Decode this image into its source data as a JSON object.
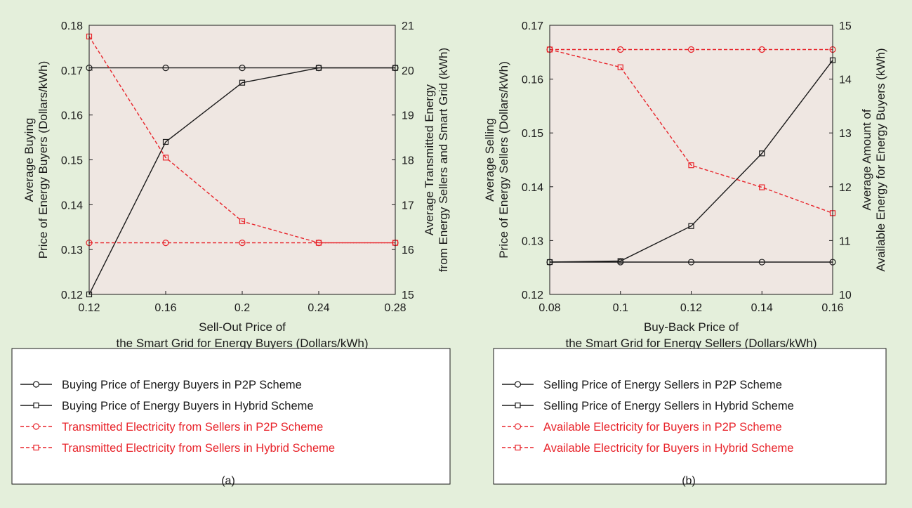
{
  "chart_data": [
    {
      "type": "line",
      "panel_label": "(a)",
      "x": [
        0.12,
        0.16,
        0.2,
        0.24,
        0.28
      ],
      "x_ticks": [
        "0.12",
        "0.16",
        "0.2",
        "0.24",
        "0.28"
      ],
      "xlim": [
        0.12,
        0.28
      ],
      "xlabel_lines": [
        "Sell-Out Price of",
        "the Smart Grid for Energy Buyers (Dollars/kWh)"
      ],
      "ylim": [
        0.12,
        0.18
      ],
      "y_ticks": [
        "0.12",
        "0.13",
        "0.14",
        "0.15",
        "0.16",
        "0.17",
        "0.18"
      ],
      "ylabel_lines": [
        "Average Buying",
        "Price of Energy Buyers (Dollars/kWh)"
      ],
      "y2lim": [
        15,
        21
      ],
      "y2_ticks": [
        "15",
        "16",
        "17",
        "18",
        "19",
        "20",
        "21"
      ],
      "y2label_lines": [
        "Average Transmitted Energy",
        "from Energy Sellers and Smart Grid (kWh)"
      ],
      "series": [
        {
          "name": "Buying Price of Energy Buyers in P2P Scheme",
          "axis": "left",
          "marker": "circle",
          "color": "#1a1a1a",
          "dashed": false,
          "values": [
            0.1705,
            0.1705,
            0.1705,
            0.1705,
            0.1705
          ]
        },
        {
          "name": "Buying Price of Energy Buyers in Hybrid Scheme",
          "axis": "left",
          "marker": "square",
          "color": "#1a1a1a",
          "dashed": false,
          "values": [
            0.12,
            0.154,
            0.1672,
            0.1705,
            0.1705
          ]
        },
        {
          "name": "Transmitted Electricity from Sellers in P2P Scheme",
          "axis": "right",
          "marker": "circle",
          "color": "#e8232a",
          "dashed": true,
          "values": [
            16.15,
            16.15,
            16.15,
            16.15,
            16.15
          ]
        },
        {
          "name": "Transmitted Electricity from Sellers in Hybrid Scheme",
          "axis": "right",
          "marker": "square",
          "color": "#e8232a",
          "dashed": true,
          "values": [
            20.75,
            18.05,
            16.63,
            16.15,
            16.15
          ]
        }
      ]
    },
    {
      "type": "line",
      "panel_label": "(b)",
      "x": [
        0.08,
        0.1,
        0.12,
        0.14,
        0.16
      ],
      "x_ticks": [
        "0.08",
        "0.1",
        "0.12",
        "0.14",
        "0.16"
      ],
      "xlim": [
        0.08,
        0.16
      ],
      "xlabel_lines": [
        "Buy-Back Price of",
        "the Smart Grid for Energy Sellers (Dollars/kWh)"
      ],
      "ylim": [
        0.12,
        0.17
      ],
      "y_ticks": [
        "0.12",
        "0.13",
        "0.14",
        "0.15",
        "0.16",
        "0.17"
      ],
      "ylabel_lines": [
        "Average Selling",
        "Price of Energy Sellers (Dollars/kWh)"
      ],
      "y2lim": [
        10,
        15
      ],
      "y2_ticks": [
        "10",
        "11",
        "12",
        "13",
        "14",
        "15"
      ],
      "y2label_lines": [
        "Average Amount of",
        "Available Energy for Energy Buyers (kWh)"
      ],
      "series": [
        {
          "name": "Selling Price of Energy Sellers in P2P Scheme",
          "axis": "left",
          "marker": "circle",
          "color": "#1a1a1a",
          "dashed": false,
          "values": [
            0.126,
            0.126,
            0.126,
            0.126,
            0.126
          ]
        },
        {
          "name": "Selling Price of Energy Sellers in Hybrid Scheme",
          "axis": "left",
          "marker": "square",
          "color": "#1a1a1a",
          "dashed": false,
          "values": [
            0.126,
            0.1262,
            0.1327,
            0.1462,
            0.1635
          ]
        },
        {
          "name": "Available Electricity for Buyers in P2P Scheme",
          "axis": "right",
          "marker": "circle",
          "color": "#e8232a",
          "dashed": true,
          "values": [
            14.55,
            14.55,
            14.55,
            14.55,
            14.55
          ]
        },
        {
          "name": "Available Electricity for Buyers in Hybrid Scheme",
          "axis": "right",
          "marker": "square",
          "color": "#e8232a",
          "dashed": true,
          "values": [
            14.55,
            14.22,
            12.4,
            11.99,
            11.51
          ]
        }
      ]
    }
  ],
  "colors": {
    "figure_background": "#e4efdb",
    "plot_background": "#efe7e2",
    "black_series": "#1a1a1a",
    "red_series": "#e8232a"
  }
}
